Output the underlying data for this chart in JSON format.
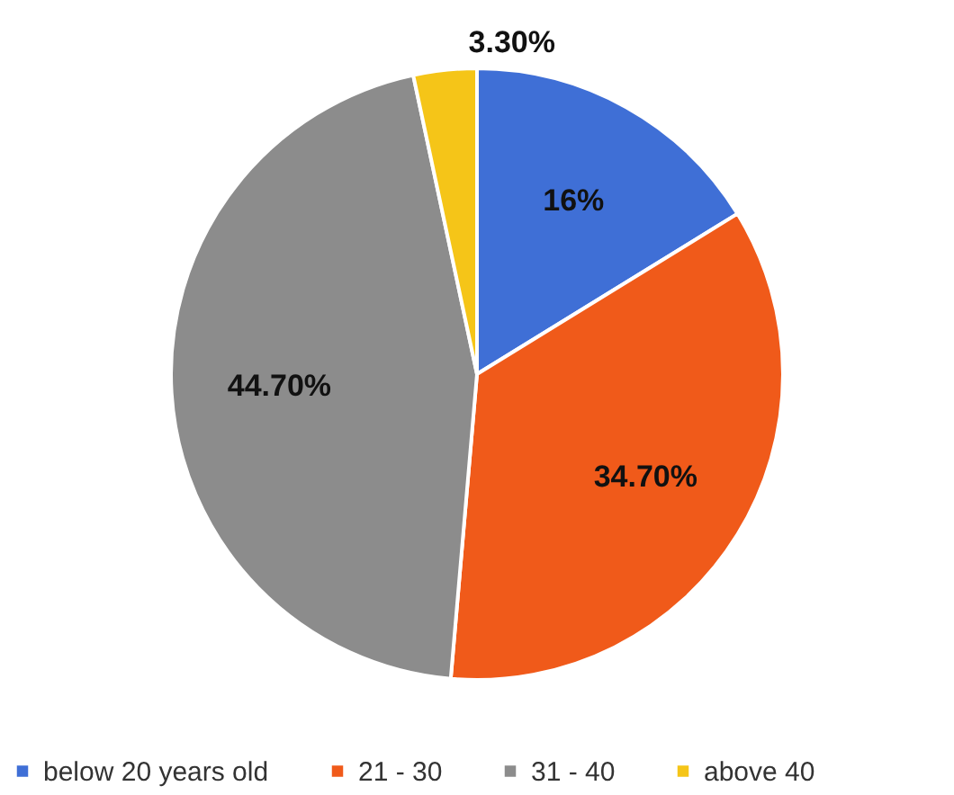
{
  "chart_data": {
    "type": "pie",
    "categories": [
      "below 20 years old",
      "21 - 30",
      "31 - 40",
      "above 40"
    ],
    "values": [
      16,
      34.7,
      44.7,
      3.3
    ],
    "value_labels": [
      "16%",
      "34.70%",
      "44.70%",
      "3.30%"
    ],
    "colors": [
      "#3f6fd6",
      "#f05a1a",
      "#8c8c8c",
      "#f5c518"
    ],
    "legend": "bottom"
  }
}
